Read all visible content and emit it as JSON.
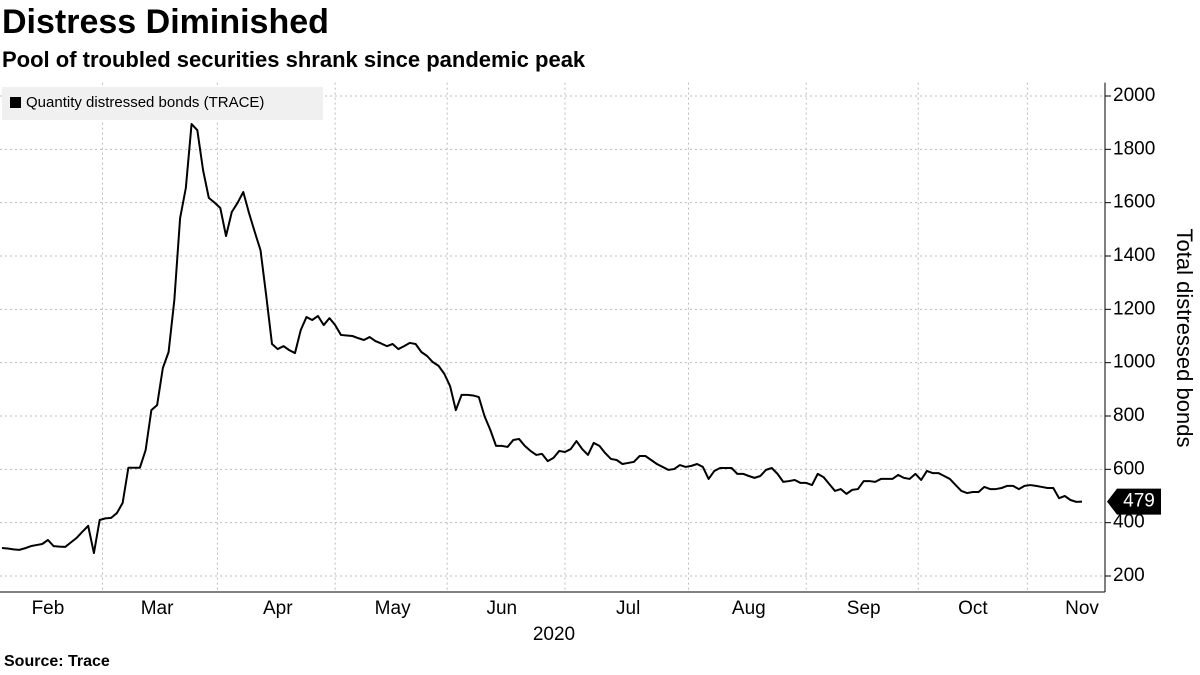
{
  "chart_data": {
    "type": "line",
    "title": "Distress Diminished",
    "subtitle": "Pool of troubled securities shrank since pandemic peak",
    "source": "Source: Trace",
    "x_label": "2020",
    "y_label": "Total distressed bonds",
    "categories": [
      null,
      null,
      null,
      null,
      null,
      null,
      null,
      null,
      "Feb",
      null,
      null,
      null,
      null,
      null,
      null,
      null,
      null,
      null,
      null,
      null,
      null,
      null,
      null,
      null,
      null,
      null,
      null,
      "Mar",
      null,
      null,
      null,
      null,
      null,
      null,
      null,
      null,
      null,
      null,
      null,
      null,
      null,
      null,
      null,
      null,
      null,
      null,
      null,
      null,
      "Apr",
      null,
      null,
      null,
      null,
      null,
      null,
      null,
      null,
      null,
      null,
      null,
      null,
      null,
      null,
      null,
      null,
      null,
      null,
      null,
      "May",
      null,
      null,
      null,
      null,
      null,
      null,
      null,
      null,
      null,
      null,
      null,
      null,
      null,
      null,
      null,
      null,
      null,
      null,
      "Jun",
      null,
      null,
      null,
      null,
      null,
      null,
      null,
      null,
      null,
      null,
      null,
      null,
      null,
      null,
      null,
      null,
      null,
      null,
      null,
      null,
      null,
      "Jul",
      null,
      null,
      null,
      null,
      null,
      null,
      null,
      null,
      null,
      null,
      null,
      null,
      null,
      null,
      null,
      null,
      null,
      null,
      null,
      null,
      "Aug",
      null,
      null,
      null,
      null,
      null,
      null,
      null,
      null,
      null,
      null,
      null,
      null,
      null,
      null,
      null,
      null,
      null,
      null,
      null,
      "Sep",
      null,
      null,
      null,
      null,
      null,
      null,
      null,
      null,
      null,
      null,
      null,
      null,
      null,
      null,
      null,
      null,
      null,
      null,
      "Oct",
      null,
      null,
      null,
      null,
      null,
      null,
      null,
      null,
      null,
      null,
      null,
      null,
      null,
      null,
      null,
      null,
      null,
      null,
      "Nov"
    ],
    "series": [
      {
        "name": "Quantity distressed bonds (TRACE)",
        "color": "#000000",
        "values": [
          305,
          303,
          300,
          298,
          304,
          312,
          316,
          320,
          335,
          312,
          310,
          309,
          326,
          343,
          366,
          388,
          286,
          410,
          416,
          418,
          436,
          474,
          606,
          606,
          606,
          672,
          822,
          841,
          980,
          1040,
          1235,
          1542,
          1655,
          1895,
          1872,
          1722,
          1618,
          1600,
          1580,
          1475,
          1565,
          1599,
          1640,
          1561,
          1490,
          1422,
          1250,
          1070,
          1051,
          1062,
          1047,
          1036,
          1122,
          1171,
          1160,
          1175,
          1141,
          1167,
          1141,
          1104,
          1102,
          1100,
          1092,
          1085,
          1096,
          1081,
          1072,
          1062,
          1070,
          1051,
          1062,
          1074,
          1070,
          1040,
          1025,
          1002,
          988,
          958,
          912,
          822,
          879,
          879,
          877,
          871,
          799,
          748,
          688,
          688,
          684,
          710,
          714,
          688,
          669,
          654,
          658,
          631,
          643,
          669,
          665,
          676,
          706,
          676,
          654,
          699,
          688,
          661,
          639,
          635,
          620,
          624,
          628,
          650,
          650,
          635,
          620,
          609,
          598,
          601,
          616,
          609,
          613,
          620,
          609,
          564,
          594,
          605,
          605,
          605,
          583,
          583,
          575,
          568,
          575,
          598,
          605,
          583,
          553,
          556,
          560,
          549,
          549,
          541,
          583,
          571,
          545,
          519,
          526,
          508,
          523,
          526,
          556,
          556,
          553,
          564,
          564,
          564,
          579,
          568,
          564,
          583,
          560,
          594,
          586,
          586,
          575,
          564,
          541,
          519,
          511,
          515,
          515,
          534,
          526,
          526,
          530,
          538,
          538,
          526,
          538,
          541,
          538,
          534,
          530,
          530,
          492,
          500,
          485,
          478,
          479
        ]
      }
    ],
    "ylim": [
      140,
      2050
    ],
    "yticks": [
      200,
      400,
      600,
      800,
      1000,
      1200,
      1400,
      1600,
      1800,
      2000
    ],
    "grid": true,
    "legend": "top-left"
  }
}
